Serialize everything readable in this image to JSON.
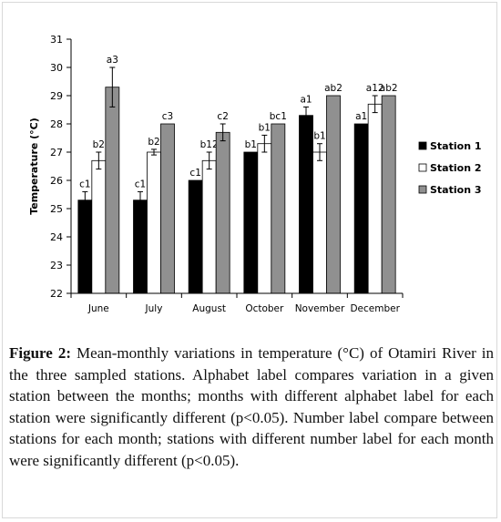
{
  "chart_data": {
    "type": "bar",
    "ylabel": "Temperature (°C)",
    "ylim": [
      22,
      31
    ],
    "yticks": [
      "22",
      "23",
      "24",
      "25",
      "26",
      "27",
      "28",
      "29",
      "30",
      "31"
    ],
    "categories": [
      "June",
      "July",
      "August",
      "October",
      "November",
      "December"
    ],
    "legend_position": "right",
    "series": [
      {
        "name": "Station 1",
        "color": "#000000",
        "values": [
          25.3,
          25.3,
          26.0,
          27.0,
          28.3,
          28.0
        ],
        "errors": [
          0.3,
          0.3,
          0.0,
          0.0,
          0.3,
          0.0
        ],
        "labels": [
          "c1",
          "c1",
          "c1",
          "b1",
          "a1",
          "a1"
        ]
      },
      {
        "name": "Station 2",
        "color": "#ffffff",
        "values": [
          26.7,
          27.0,
          26.7,
          27.3,
          27.0,
          28.7
        ],
        "errors": [
          0.3,
          0.1,
          0.3,
          0.3,
          0.3,
          0.3
        ],
        "labels": [
          "b2",
          "b2",
          "b12",
          "b1",
          "b1",
          "a12"
        ]
      },
      {
        "name": "Station 3",
        "color": "#909090",
        "values": [
          29.3,
          28.0,
          27.7,
          28.0,
          29.0,
          29.0
        ],
        "errors": [
          0.7,
          0.0,
          0.3,
          0.0,
          0.0,
          0.0
        ],
        "labels": [
          "a3",
          "c3",
          "c2",
          "bc1",
          "ab2",
          "ab2"
        ]
      }
    ]
  },
  "caption": {
    "label": "Figure 2:",
    "text": "Mean-monthly variations in temperature (°C) of Otamiri River in the three sampled stations. Alphabet label compares variation in a given station between the months; months with different alphabet label for each station were significantly different (p<0.05). Number label compare between stations for each month; stations with different number label for each month were significantly different (p<0.05)."
  }
}
